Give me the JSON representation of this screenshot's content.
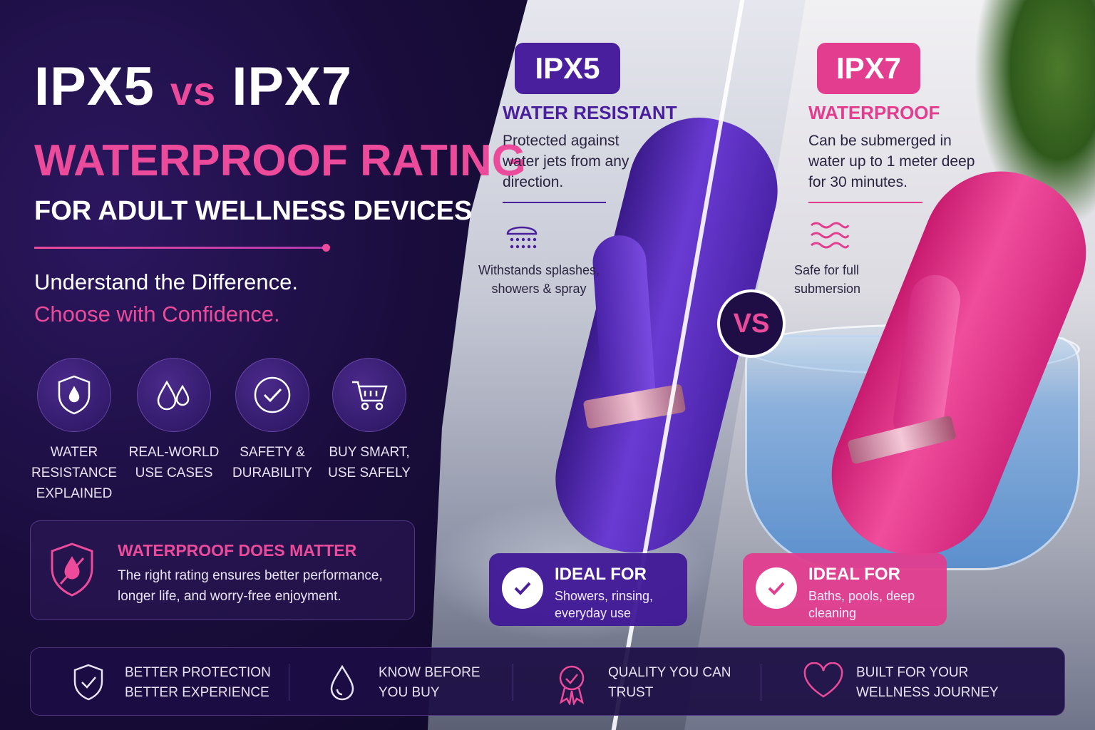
{
  "hero": {
    "ipx5": "IPX5",
    "vs": "vs",
    "ipx7": "IPX7",
    "line2": "WATERPROOF RATING",
    "line3": "FOR ADULT WELLNESS DEVICES",
    "tagline1": "Understand the Difference.",
    "tagline2": "Choose with Confidence."
  },
  "features": [
    {
      "icon": "shield-drop-icon",
      "label": "WATER RESISTANCE EXPLAINED"
    },
    {
      "icon": "water-drops-icon",
      "label": "REAL-WORLD USE CASES"
    },
    {
      "icon": "check-circle-icon",
      "label": "SAFETY & DURABILITY"
    },
    {
      "icon": "shopping-cart-icon",
      "label": "BUY SMART, USE SAFELY"
    }
  ],
  "matter": {
    "icon": "shield-crossed-drop-icon",
    "title": "WATERPROOF DOES MATTER",
    "body": "The right rating ensures better performance, longer life, and worry-free enjoyment."
  },
  "ipx5": {
    "badge": "IPX5",
    "subtitle": "WATER RESISTANT",
    "description": "Protected against water jets from any direction.",
    "icon": "shower-spray-icon",
    "note": "Withstands splashes, showers & spray",
    "ideal_title": "IDEAL FOR",
    "ideal_body": "Showers, rinsing, everyday use"
  },
  "vs_label": "VS",
  "ipx7": {
    "badge": "IPX7",
    "subtitle": "WATERPROOF",
    "description": "Can be submerged in water up to 1 meter deep for 30 minutes.",
    "icon": "waves-icon",
    "note": "Safe for full submersion",
    "ideal_title": "IDEAL FOR",
    "ideal_body": "Baths, pools, deep cleaning"
  },
  "footer": [
    {
      "icon": "shield-check-icon",
      "line1": "BETTER PROTECTION",
      "line2": "BETTER EXPERIENCE"
    },
    {
      "icon": "water-drop-icon",
      "line1": "KNOW BEFORE",
      "line2": "YOU BUY"
    },
    {
      "icon": "award-ribbon-icon",
      "line1": "QUALITY YOU CAN",
      "line2": "TRUST"
    },
    {
      "icon": "heart-icon",
      "line1": "BUILT FOR YOUR",
      "line2": "WELLNESS JOURNEY"
    }
  ],
  "colors": {
    "navy": "#14092e",
    "purple": "#4a1f9e",
    "pink": "#e23d8e",
    "accent_pink": "#ec4a9a"
  }
}
